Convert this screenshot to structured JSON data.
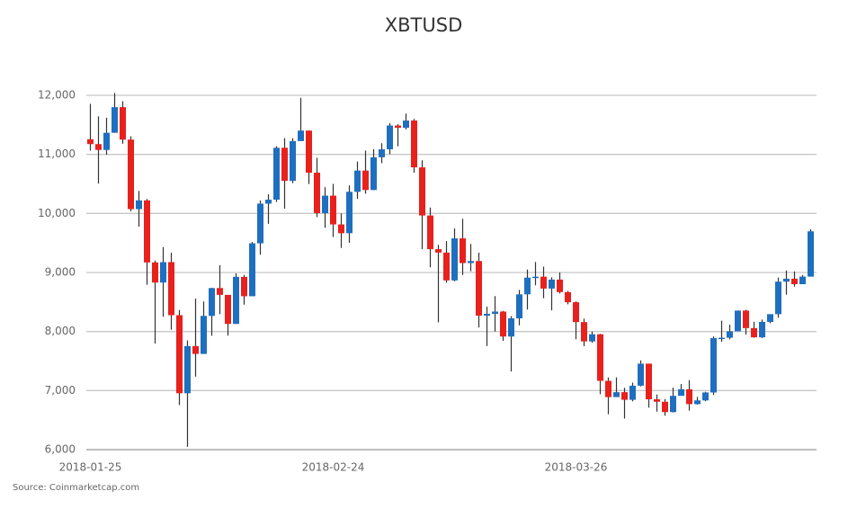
{
  "chart_data": {
    "type": "candlestick",
    "title": "XBTUSD",
    "source": "Source: Coinmarketcap.com",
    "x": [
      "2018-01-25",
      "2018-01-26",
      "2018-01-27",
      "2018-01-28",
      "2018-01-29",
      "2018-01-30",
      "2018-01-31",
      "2018-02-01",
      "2018-02-02",
      "2018-02-03",
      "2018-02-04",
      "2018-02-05",
      "2018-02-06",
      "2018-02-07",
      "2018-02-08",
      "2018-02-09",
      "2018-02-10",
      "2018-02-11",
      "2018-02-12",
      "2018-02-13",
      "2018-02-14",
      "2018-02-15",
      "2018-02-16",
      "2018-02-17",
      "2018-02-18",
      "2018-02-19",
      "2018-02-20",
      "2018-02-21",
      "2018-02-22",
      "2018-02-23",
      "2018-02-24",
      "2018-02-25",
      "2018-02-26",
      "2018-02-27",
      "2018-02-28",
      "2018-03-01",
      "2018-03-02",
      "2018-03-03",
      "2018-03-04",
      "2018-03-05",
      "2018-03-06",
      "2018-03-07",
      "2018-03-08",
      "2018-03-09",
      "2018-03-10",
      "2018-03-11",
      "2018-03-12",
      "2018-03-13",
      "2018-03-14",
      "2018-03-15",
      "2018-03-16",
      "2018-03-17",
      "2018-03-18",
      "2018-03-19",
      "2018-03-20",
      "2018-03-21",
      "2018-03-22",
      "2018-03-23",
      "2018-03-24",
      "2018-03-25",
      "2018-03-26",
      "2018-03-27",
      "2018-03-28",
      "2018-03-29",
      "2018-03-30",
      "2018-03-31",
      "2018-04-01",
      "2018-04-02",
      "2018-04-03",
      "2018-04-04",
      "2018-04-05",
      "2018-04-06",
      "2018-04-07",
      "2018-04-08",
      "2018-04-09",
      "2018-04-10",
      "2018-04-11",
      "2018-04-12",
      "2018-04-13",
      "2018-04-14",
      "2018-04-15",
      "2018-04-16",
      "2018-04-17",
      "2018-04-18",
      "2018-04-19",
      "2018-04-20",
      "2018-04-21",
      "2018-04-22",
      "2018-04-23",
      "2018-04-24"
    ],
    "open": [
      11256,
      11174,
      11075,
      11366,
      11800,
      11250,
      10073,
      10221,
      9170,
      8830,
      9175,
      8277,
      6955,
      7754,
      7621,
      8265,
      8736,
      8621,
      8129,
      8926,
      8598,
      9494,
      10166,
      10233,
      11112,
      10551,
      11225,
      11403,
      10690,
      10005,
      10301,
      9814,
      9665,
      10366,
      10726,
      10397,
      10951,
      11086,
      11489,
      11450,
      11573,
      10780,
      9965,
      9395,
      9337,
      8866,
      9578,
      9160,
      9194,
      8269,
      8300,
      8338,
      7916,
      8223,
      8630,
      8913,
      8929,
      8728,
      8880,
      8668,
      8496,
      8160,
      7833,
      7954,
      7165,
      6890,
      6973,
      6844,
      7083,
      7456,
      6853,
      6811,
      6636,
      6911,
      7023,
      6771,
      6834,
      6968,
      7889,
      7895,
      8004,
      8355,
      8058,
      7902,
      8163,
      8294,
      8845,
      8895,
      8802,
      8930
    ],
    "high": [
      11856,
      11644,
      11621,
      12040,
      11900,
      11306,
      10381,
      10244,
      9200,
      9430,
      9335,
      8364,
      7850,
      8558,
      8509,
      8739,
      9122,
      8621,
      8985,
      8958,
      9518,
      10219,
      10324,
      11139,
      11275,
      11273,
      11958,
      11403,
      10942,
      10444,
      10501,
      9998,
      10475,
      10878,
      11065,
      11089,
      11189,
      11528,
      11512,
      11690,
      11600,
      10900,
      10100,
      9467,
      9531,
      9747,
      9910,
      9484,
      9335,
      8420,
      8600,
      8350,
      8261,
      8704,
      9050,
      9177,
      9100,
      8918,
      9000,
      8686,
      8510,
      8218,
      8000,
      7960,
      7223,
      7224,
      7047,
      7135,
      7512,
      7456,
      6933,
      6857,
      7050,
      7111,
      7178,
      6892,
      6980,
      7918,
      8184,
      8116,
      8357,
      8369,
      8165,
      8203,
      8294,
      8914,
      9035,
      9018,
      8958,
      9732
    ],
    "low": [
      11063,
      10505,
      10993,
      11366,
      11180,
      10036,
      9777,
      8792,
      7796,
      8250,
      8030,
      6755,
      6048,
      7236,
      7620,
      7930,
      8295,
      7931,
      8129,
      8455,
      8598,
      9301,
      9824,
      10194,
      10081,
      10513,
      11231,
      10497,
      9938,
      9757,
      9599,
      9416,
      9501,
      10246,
      10334,
      10393,
      10850,
      11002,
      11137,
      11423,
      10689,
      9394,
      9087,
      8156,
      8828,
      8850,
      8958,
      9021,
      8069,
      7755,
      8000,
      7843,
      7323,
      8105,
      8373,
      8783,
      8564,
      8358,
      8645,
      8460,
      7869,
      7752,
      7810,
      6938,
      6600,
      6890,
      6526,
      6818,
      7071,
      6711,
      6644,
      6575,
      6630,
      6919,
      6662,
      6763,
      6820,
      6925,
      7826,
      7867,
      8004,
      7949,
      7895,
      7889,
      8141,
      8233,
      8625,
      8760,
      8803,
      8930
    ],
    "close": [
      11174,
      11075,
      11366,
      11800,
      11250,
      10073,
      10221,
      9170,
      8830,
      9175,
      8277,
      6955,
      7754,
      7621,
      8265,
      8736,
      8621,
      8129,
      8926,
      8598,
      9494,
      10166,
      10233,
      11112,
      10551,
      11225,
      11403,
      10690,
      10005,
      10301,
      9814,
      9665,
      10366,
      10726,
      10397,
      10951,
      11086,
      11489,
      11450,
      11573,
      10780,
      9965,
      9395,
      9337,
      8866,
      9578,
      9160,
      9194,
      8269,
      8300,
      8338,
      7916,
      8223,
      8630,
      8913,
      8929,
      8728,
      8880,
      8668,
      8496,
      8160,
      7833,
      7954,
      7165,
      6890,
      6973,
      6844,
      7083,
      7456,
      6853,
      6811,
      6636,
      6911,
      7023,
      6771,
      6834,
      6968,
      7889,
      7895,
      8004,
      8355,
      8058,
      7902,
      8163,
      8294,
      8845,
      8895,
      8802,
      8930,
      9697
    ],
    "up_color": "#1f6fc0",
    "down_color": "#e8211d",
    "ylim": [
      6000,
      12000
    ],
    "yticks": [
      {
        "value": 6000,
        "label": "6,000"
      },
      {
        "value": 7000,
        "label": "7,000"
      },
      {
        "value": 8000,
        "label": "8,000"
      },
      {
        "value": 9000,
        "label": "9,000"
      },
      {
        "value": 10000,
        "label": "10,000"
      },
      {
        "value": 11000,
        "label": "11,000"
      },
      {
        "value": 12000,
        "label": "12,000"
      }
    ],
    "xticks": [
      "2018-01-25",
      "2018-02-24",
      "2018-03-26"
    ],
    "grid": true
  }
}
